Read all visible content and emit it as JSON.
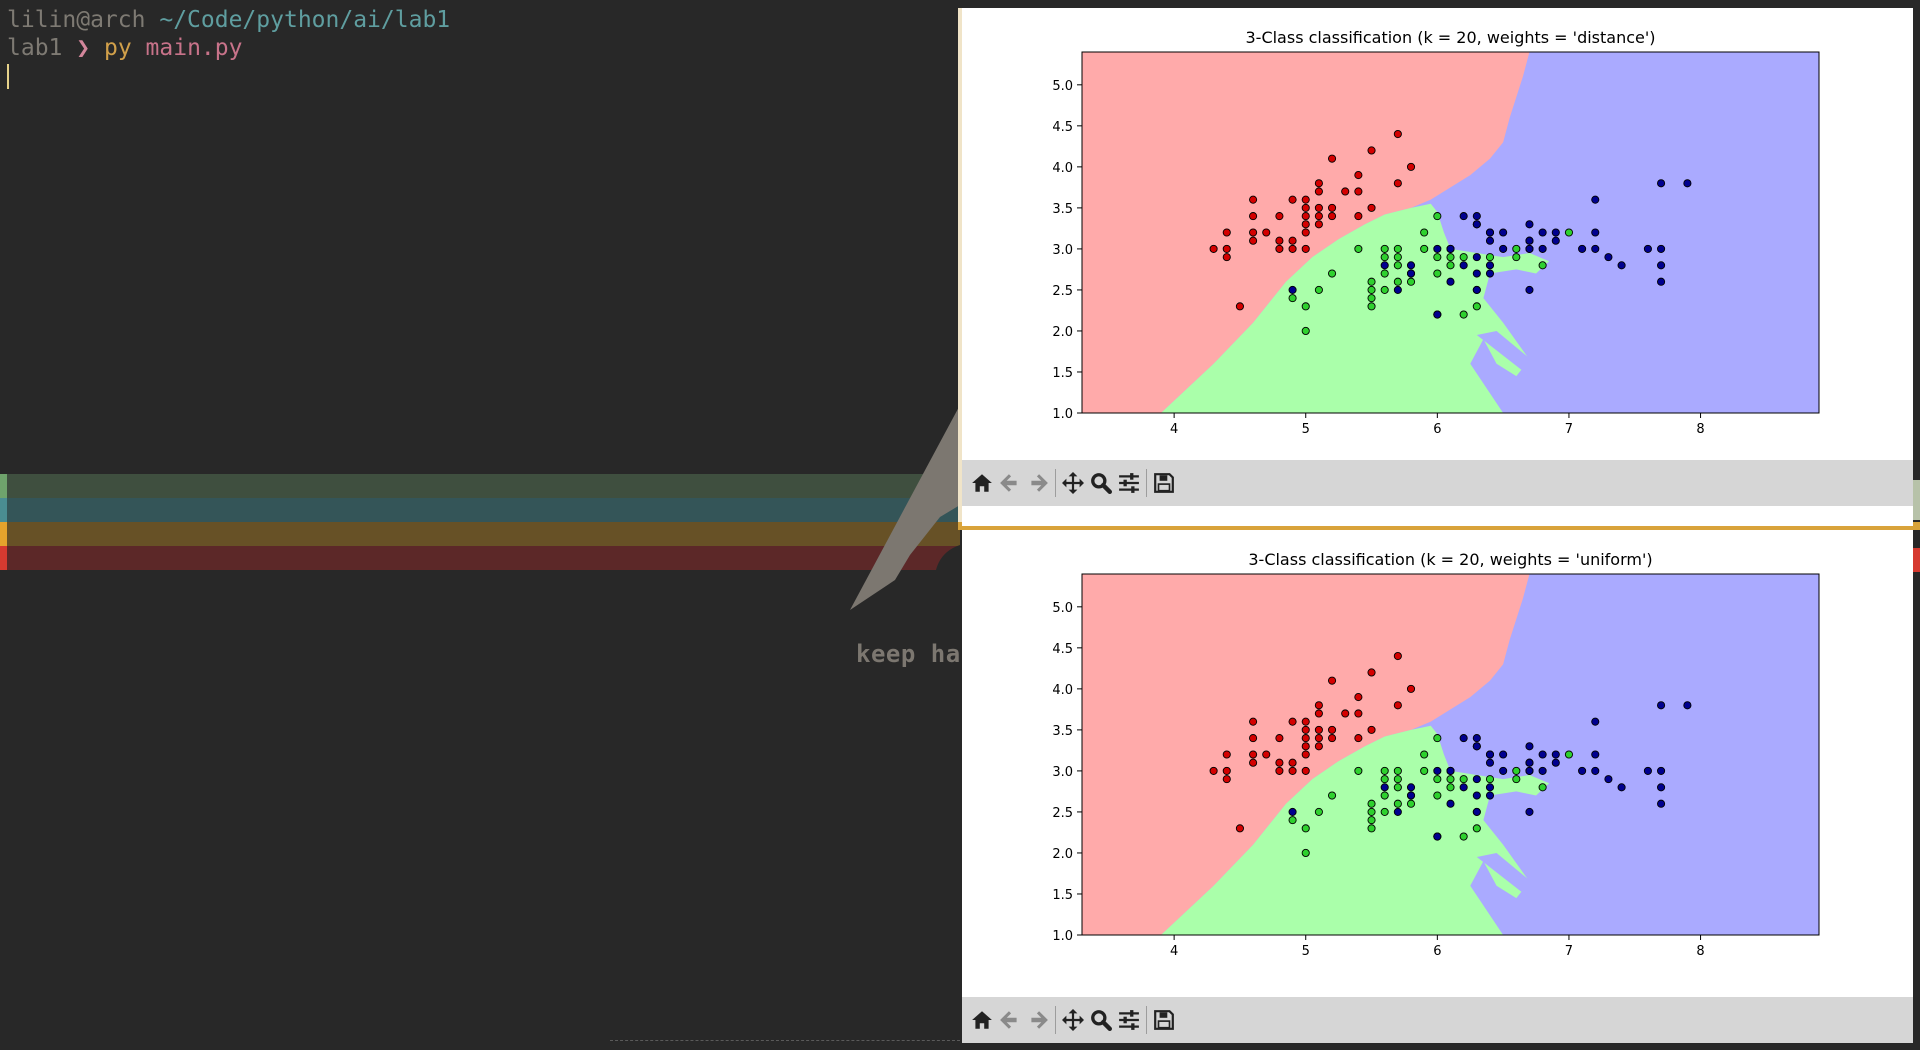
{
  "terminal": {
    "prompt_user": "lilin@arch",
    "prompt_path": "~/Code/python/ai/lab1",
    "dir": "lab1",
    "arrow": "❯",
    "command": "py",
    "argument": "main.py"
  },
  "wallpaper": {
    "text": "keep hac",
    "stripe_colors": [
      "#3f4f3f",
      "#345558",
      "#675126",
      "#5c2828"
    ],
    "edge_colors": [
      "#6fa36c",
      "#4a8d92",
      "#e5a32c",
      "#d63a30"
    ]
  },
  "colors": {
    "region_red": "#ffaaaa",
    "region_green": "#aaffaa",
    "region_blue": "#aaaaff",
    "point_red": "#d40000",
    "point_green": "#2ed12e",
    "point_blue": "#00008f"
  },
  "toolbar_icons": [
    "home-icon",
    "back-arrow-icon",
    "forward-arrow-icon",
    "pan-move-icon",
    "zoom-magnifier-icon",
    "configure-sliders-icon",
    "save-disk-icon"
  ],
  "chart_data": [
    {
      "type": "scatter",
      "title": "3-Class classification (k = 20, weights = 'distance')",
      "xlabel": "",
      "ylabel": "",
      "xlim": [
        3.3,
        8.9
      ],
      "ylim": [
        1.0,
        5.4
      ],
      "xticks": [
        "4",
        "5",
        "6",
        "7",
        "8"
      ],
      "yticks": [
        "1.0",
        "1.5",
        "2.0",
        "2.5",
        "3.0",
        "3.5",
        "4.0",
        "4.5",
        "5.0"
      ],
      "background": "decision regions (red / green / blue)",
      "series": [
        {
          "color": "red",
          "points": [
            [
              4.3,
              3.0
            ],
            [
              4.4,
              2.9
            ],
            [
              4.4,
              3.0
            ],
            [
              4.4,
              3.2
            ],
            [
              4.5,
              2.3
            ],
            [
              4.6,
              3.1
            ],
            [
              4.6,
              3.2
            ],
            [
              4.6,
              3.4
            ],
            [
              4.6,
              3.6
            ],
            [
              4.7,
              3.2
            ],
            [
              4.8,
              3.0
            ],
            [
              4.8,
              3.1
            ],
            [
              4.8,
              3.4
            ],
            [
              4.9,
              3.0
            ],
            [
              4.9,
              3.1
            ],
            [
              4.9,
              3.6
            ],
            [
              5.0,
              3.0
            ],
            [
              5.0,
              3.2
            ],
            [
              5.0,
              3.3
            ],
            [
              5.0,
              3.4
            ],
            [
              5.0,
              3.5
            ],
            [
              5.0,
              3.6
            ],
            [
              5.1,
              3.3
            ],
            [
              5.1,
              3.4
            ],
            [
              5.1,
              3.5
            ],
            [
              5.1,
              3.7
            ],
            [
              5.1,
              3.8
            ],
            [
              5.2,
              3.4
            ],
            [
              5.2,
              3.5
            ],
            [
              5.2,
              4.1
            ],
            [
              5.3,
              3.7
            ],
            [
              5.4,
              3.4
            ],
            [
              5.4,
              3.7
            ],
            [
              5.4,
              3.9
            ],
            [
              5.5,
              3.5
            ],
            [
              5.5,
              4.2
            ],
            [
              5.7,
              3.8
            ],
            [
              5.7,
              4.4
            ],
            [
              5.8,
              4.0
            ]
          ]
        },
        {
          "color": "green",
          "points": [
            [
              4.9,
              2.4
            ],
            [
              5.0,
              2.0
            ],
            [
              5.0,
              2.3
            ],
            [
              5.1,
              2.5
            ],
            [
              5.2,
              2.7
            ],
            [
              5.4,
              3.0
            ],
            [
              5.5,
              2.3
            ],
            [
              5.5,
              2.4
            ],
            [
              5.5,
              2.5
            ],
            [
              5.5,
              2.6
            ],
            [
              5.6,
              2.5
            ],
            [
              5.6,
              2.7
            ],
            [
              5.6,
              2.9
            ],
            [
              5.6,
              3.0
            ],
            [
              5.7,
              2.6
            ],
            [
              5.7,
              2.8
            ],
            [
              5.7,
              2.9
            ],
            [
              5.7,
              3.0
            ],
            [
              5.8,
              2.6
            ],
            [
              5.8,
              2.7
            ],
            [
              5.9,
              3.0
            ],
            [
              5.9,
              3.2
            ],
            [
              6.0,
              2.2
            ],
            [
              6.0,
              2.7
            ],
            [
              6.0,
              2.9
            ],
            [
              6.0,
              3.4
            ],
            [
              6.1,
              2.8
            ],
            [
              6.1,
              2.9
            ],
            [
              6.1,
              3.0
            ],
            [
              6.2,
              2.2
            ],
            [
              6.2,
              2.9
            ],
            [
              6.3,
              2.3
            ],
            [
              6.3,
              2.5
            ],
            [
              6.3,
              3.3
            ],
            [
              6.4,
              2.9
            ],
            [
              6.4,
              3.2
            ],
            [
              6.6,
              2.9
            ],
            [
              6.6,
              3.0
            ],
            [
              6.7,
              3.0
            ],
            [
              6.7,
              3.1
            ],
            [
              6.8,
              2.8
            ],
            [
              7.0,
              3.2
            ]
          ]
        },
        {
          "color": "blue",
          "points": [
            [
              4.9,
              2.5
            ],
            [
              5.6,
              2.8
            ],
            [
              5.7,
              2.5
            ],
            [
              5.8,
              2.7
            ],
            [
              5.8,
              2.8
            ],
            [
              6.0,
              2.2
            ],
            [
              6.0,
              3.0
            ],
            [
              6.1,
              2.6
            ],
            [
              6.1,
              3.0
            ],
            [
              6.2,
              2.8
            ],
            [
              6.2,
              3.4
            ],
            [
              6.3,
              2.5
            ],
            [
              6.3,
              2.7
            ],
            [
              6.3,
              2.9
            ],
            [
              6.3,
              3.3
            ],
            [
              6.3,
              3.4
            ],
            [
              6.4,
              2.7
            ],
            [
              6.4,
              2.8
            ],
            [
              6.4,
              3.1
            ],
            [
              6.4,
              3.2
            ],
            [
              6.5,
              3.0
            ],
            [
              6.5,
              3.2
            ],
            [
              6.7,
              2.5
            ],
            [
              6.7,
              3.0
            ],
            [
              6.7,
              3.1
            ],
            [
              6.7,
              3.3
            ],
            [
              6.8,
              3.0
            ],
            [
              6.8,
              3.2
            ],
            [
              6.9,
              3.1
            ],
            [
              6.9,
              3.2
            ],
            [
              7.1,
              3.0
            ],
            [
              7.2,
              3.0
            ],
            [
              7.2,
              3.2
            ],
            [
              7.2,
              3.6
            ],
            [
              7.3,
              2.9
            ],
            [
              7.4,
              2.8
            ],
            [
              7.6,
              3.0
            ],
            [
              7.7,
              2.6
            ],
            [
              7.7,
              2.8
            ],
            [
              7.7,
              3.0
            ],
            [
              7.7,
              3.8
            ],
            [
              7.9,
              3.8
            ]
          ]
        }
      ]
    },
    {
      "type": "scatter",
      "title": "3-Class classification (k = 20, weights = 'uniform')",
      "xlabel": "",
      "ylabel": "",
      "xlim": [
        3.3,
        8.9
      ],
      "ylim": [
        1.0,
        5.4
      ],
      "xticks": [
        "4",
        "5",
        "6",
        "7",
        "8"
      ],
      "yticks": [
        "1.0",
        "1.5",
        "2.0",
        "2.5",
        "3.0",
        "3.5",
        "4.0",
        "4.5",
        "5.0"
      ],
      "background": "decision regions (red / green / blue)",
      "series": [
        {
          "color": "red",
          "points": [
            [
              4.3,
              3.0
            ],
            [
              4.4,
              2.9
            ],
            [
              4.4,
              3.0
            ],
            [
              4.4,
              3.2
            ],
            [
              4.5,
              2.3
            ],
            [
              4.6,
              3.1
            ],
            [
              4.6,
              3.2
            ],
            [
              4.6,
              3.4
            ],
            [
              4.6,
              3.6
            ],
            [
              4.7,
              3.2
            ],
            [
              4.8,
              3.0
            ],
            [
              4.8,
              3.1
            ],
            [
              4.8,
              3.4
            ],
            [
              4.9,
              3.0
            ],
            [
              4.9,
              3.1
            ],
            [
              4.9,
              3.6
            ],
            [
              5.0,
              3.0
            ],
            [
              5.0,
              3.2
            ],
            [
              5.0,
              3.3
            ],
            [
              5.0,
              3.4
            ],
            [
              5.0,
              3.5
            ],
            [
              5.0,
              3.6
            ],
            [
              5.1,
              3.3
            ],
            [
              5.1,
              3.4
            ],
            [
              5.1,
              3.5
            ],
            [
              5.1,
              3.7
            ],
            [
              5.1,
              3.8
            ],
            [
              5.2,
              3.4
            ],
            [
              5.2,
              3.5
            ],
            [
              5.2,
              4.1
            ],
            [
              5.3,
              3.7
            ],
            [
              5.4,
              3.4
            ],
            [
              5.4,
              3.7
            ],
            [
              5.4,
              3.9
            ],
            [
              5.5,
              3.5
            ],
            [
              5.5,
              4.2
            ],
            [
              5.7,
              3.8
            ],
            [
              5.7,
              4.4
            ],
            [
              5.8,
              4.0
            ]
          ]
        },
        {
          "color": "green",
          "points": [
            [
              4.9,
              2.4
            ],
            [
              5.0,
              2.0
            ],
            [
              5.0,
              2.3
            ],
            [
              5.1,
              2.5
            ],
            [
              5.2,
              2.7
            ],
            [
              5.4,
              3.0
            ],
            [
              5.5,
              2.3
            ],
            [
              5.5,
              2.4
            ],
            [
              5.5,
              2.5
            ],
            [
              5.5,
              2.6
            ],
            [
              5.6,
              2.5
            ],
            [
              5.6,
              2.7
            ],
            [
              5.6,
              2.9
            ],
            [
              5.6,
              3.0
            ],
            [
              5.7,
              2.6
            ],
            [
              5.7,
              2.8
            ],
            [
              5.7,
              2.9
            ],
            [
              5.7,
              3.0
            ],
            [
              5.8,
              2.6
            ],
            [
              5.8,
              2.7
            ],
            [
              5.9,
              3.0
            ],
            [
              5.9,
              3.2
            ],
            [
              6.0,
              2.2
            ],
            [
              6.0,
              2.7
            ],
            [
              6.0,
              2.9
            ],
            [
              6.0,
              3.4
            ],
            [
              6.1,
              2.8
            ],
            [
              6.1,
              2.9
            ],
            [
              6.1,
              3.0
            ],
            [
              6.2,
              2.2
            ],
            [
              6.2,
              2.9
            ],
            [
              6.3,
              2.3
            ],
            [
              6.3,
              2.5
            ],
            [
              6.3,
              3.3
            ],
            [
              6.4,
              2.9
            ],
            [
              6.4,
              3.2
            ],
            [
              6.6,
              2.9
            ],
            [
              6.6,
              3.0
            ],
            [
              6.7,
              3.0
            ],
            [
              6.7,
              3.1
            ],
            [
              6.8,
              2.8
            ],
            [
              7.0,
              3.2
            ]
          ]
        },
        {
          "color": "blue",
          "points": [
            [
              4.9,
              2.5
            ],
            [
              5.6,
              2.8
            ],
            [
              5.7,
              2.5
            ],
            [
              5.8,
              2.7
            ],
            [
              5.8,
              2.8
            ],
            [
              6.0,
              2.2
            ],
            [
              6.0,
              3.0
            ],
            [
              6.1,
              2.6
            ],
            [
              6.1,
              3.0
            ],
            [
              6.2,
              2.8
            ],
            [
              6.2,
              3.4
            ],
            [
              6.3,
              2.5
            ],
            [
              6.3,
              2.7
            ],
            [
              6.3,
              2.9
            ],
            [
              6.3,
              3.3
            ],
            [
              6.3,
              3.4
            ],
            [
              6.4,
              2.7
            ],
            [
              6.4,
              2.8
            ],
            [
              6.4,
              3.1
            ],
            [
              6.4,
              3.2
            ],
            [
              6.5,
              3.0
            ],
            [
              6.5,
              3.2
            ],
            [
              6.7,
              2.5
            ],
            [
              6.7,
              3.0
            ],
            [
              6.7,
              3.1
            ],
            [
              6.7,
              3.3
            ],
            [
              6.8,
              3.0
            ],
            [
              6.8,
              3.2
            ],
            [
              6.9,
              3.1
            ],
            [
              6.9,
              3.2
            ],
            [
              7.1,
              3.0
            ],
            [
              7.2,
              3.0
            ],
            [
              7.2,
              3.2
            ],
            [
              7.2,
              3.6
            ],
            [
              7.3,
              2.9
            ],
            [
              7.4,
              2.8
            ],
            [
              7.6,
              3.0
            ],
            [
              7.7,
              2.6
            ],
            [
              7.7,
              2.8
            ],
            [
              7.7,
              3.0
            ],
            [
              7.7,
              3.8
            ],
            [
              7.9,
              3.8
            ]
          ]
        }
      ]
    }
  ]
}
